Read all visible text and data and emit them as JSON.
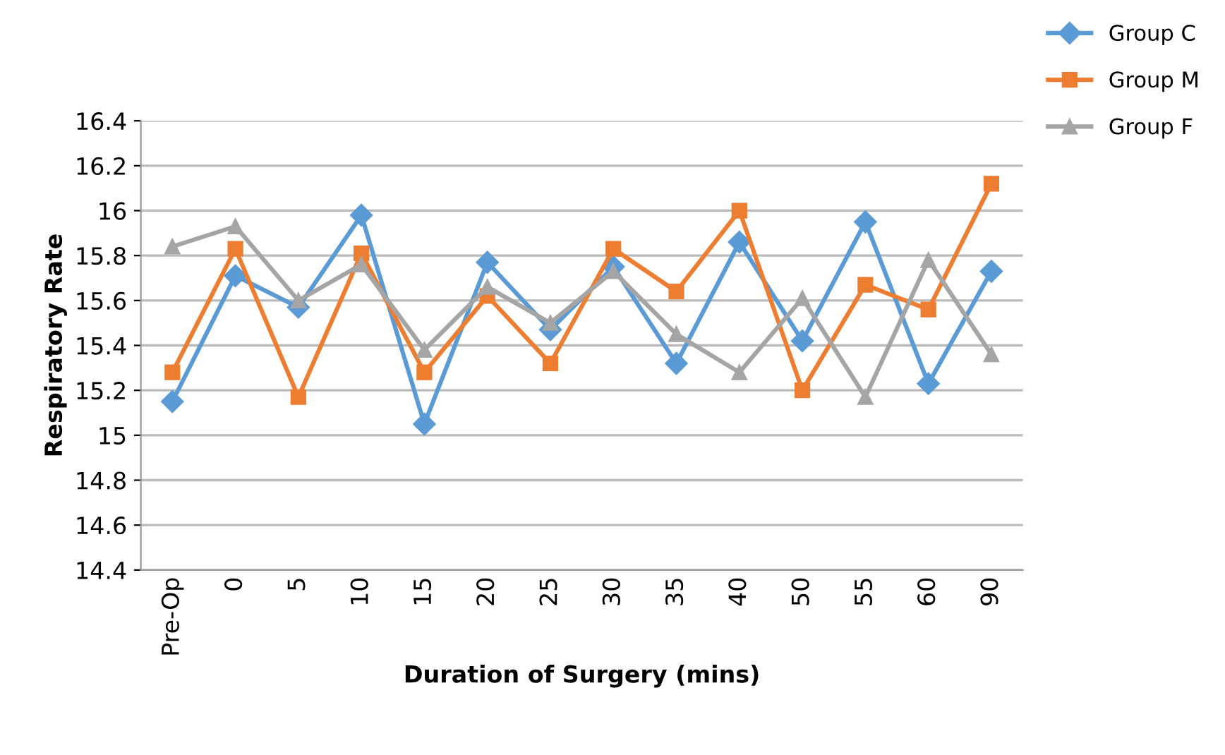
{
  "chart_data": {
    "type": "line",
    "xlabel": "Duration of Surgery (mins)",
    "ylabel": "Respiratory Rate",
    "categories": [
      "Pre-Op",
      "0",
      "5",
      "10",
      "15",
      "20",
      "25",
      "30",
      "35",
      "40",
      "50",
      "55",
      "60",
      "90"
    ],
    "series": [
      {
        "name": "Group C",
        "color": "#5b9bd5",
        "marker": "diamond",
        "values": [
          15.15,
          15.71,
          15.57,
          15.98,
          15.05,
          15.77,
          15.47,
          15.75,
          15.32,
          15.86,
          15.42,
          15.95,
          15.23,
          15.73
        ]
      },
      {
        "name": "Group M",
        "color": "#ed7d31",
        "marker": "square",
        "values": [
          15.28,
          15.83,
          15.17,
          15.81,
          15.28,
          15.62,
          15.32,
          15.83,
          15.64,
          16.0,
          15.2,
          15.67,
          15.56,
          16.12
        ]
      },
      {
        "name": "Group F",
        "color": "#a5a5a5",
        "marker": "triangle",
        "values": [
          15.84,
          15.93,
          15.6,
          15.76,
          15.38,
          15.66,
          15.5,
          15.73,
          15.45,
          15.28,
          15.61,
          15.17,
          15.78,
          15.36
        ]
      }
    ],
    "ylim": [
      14.4,
      16.4
    ],
    "yticks": [
      14.4,
      14.6,
      14.8,
      15,
      15.2,
      15.4,
      15.6,
      15.8,
      16,
      16.2,
      16.4
    ],
    "grid": "y",
    "legend": "top right",
    "line_style": "solid"
  }
}
